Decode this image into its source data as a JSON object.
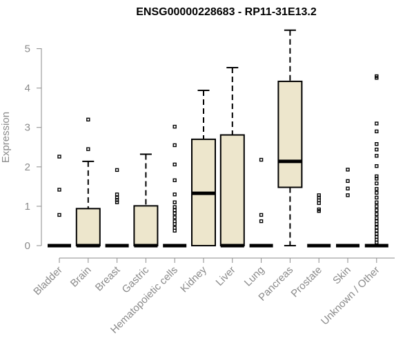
{
  "chart_data": {
    "type": "box",
    "title": "ENSG00000228683 - RP11-31E13.2",
    "xlabel": "",
    "ylabel": "Expression",
    "ylim": [
      0,
      5.5
    ],
    "yticks": [
      0,
      1,
      2,
      3,
      4,
      5
    ],
    "box_fill": "#ede6cc",
    "stroke_color": "#000000",
    "axis_color": "#8a8a8a",
    "categories": [
      "Bladder",
      "Brain",
      "Breast",
      "Gastric",
      "Hematopoietic cells",
      "Kidney",
      "Liver",
      "Lung",
      "Pancreas",
      "Prostate",
      "Skin",
      "Unknown / Other"
    ],
    "boxes": [
      {
        "category": "Bladder",
        "min": 0,
        "q1": 0,
        "median": 0,
        "q3": 0,
        "max": 0,
        "outliers": [
          0.78,
          1.42,
          2.26
        ]
      },
      {
        "category": "Brain",
        "min": 0,
        "q1": 0,
        "median": 0,
        "q3": 0.94,
        "max": 2.14,
        "outliers": [
          2.45,
          3.2
        ]
      },
      {
        "category": "Breast",
        "min": 0,
        "q1": 0,
        "median": 0,
        "q3": 0,
        "max": 0,
        "outliers": [
          1.1,
          1.16,
          1.22,
          1.3,
          1.92
        ]
      },
      {
        "category": "Gastric",
        "min": 0,
        "q1": 0,
        "median": 0,
        "q3": 1.01,
        "max": 2.32,
        "outliers": []
      },
      {
        "category": "Hematopoietic cells",
        "min": 0,
        "q1": 0,
        "median": 0,
        "q3": 0,
        "max": 0,
        "outliers": [
          0.38,
          0.45,
          0.55,
          0.62,
          0.72,
          0.82,
          0.9,
          0.98,
          1.1,
          1.3,
          1.66,
          2.06,
          2.55,
          3.02
        ]
      },
      {
        "category": "Kidney",
        "min": 0,
        "q1": 0,
        "median": 1.33,
        "q3": 2.7,
        "max": 3.94,
        "outliers": []
      },
      {
        "category": "Liver",
        "min": 0,
        "q1": 0,
        "median": 0,
        "q3": 2.81,
        "max": 4.52,
        "outliers": []
      },
      {
        "category": "Lung",
        "min": 0,
        "q1": 0,
        "median": 0,
        "q3": 0,
        "max": 0,
        "outliers": [
          0.62,
          0.78,
          2.18
        ]
      },
      {
        "category": "Pancreas",
        "min": 0,
        "q1": 1.48,
        "median": 2.14,
        "q3": 4.17,
        "max": 5.47,
        "outliers": []
      },
      {
        "category": "Prostate",
        "min": 0,
        "q1": 0,
        "median": 0,
        "q3": 0,
        "max": 0,
        "outliers": [
          0.88,
          0.92,
          1.08,
          1.15,
          1.22,
          1.28
        ]
      },
      {
        "category": "Skin",
        "min": 0,
        "q1": 0,
        "median": 0,
        "q3": 0,
        "max": 0,
        "outliers": [
          1.28,
          1.45,
          1.64,
          1.93
        ]
      },
      {
        "category": "Unknown / Other",
        "min": 0,
        "q1": 0,
        "median": 0,
        "q3": 0,
        "max": 0,
        "outliers": [
          0.08,
          0.15,
          0.22,
          0.3,
          0.38,
          0.46,
          0.55,
          0.62,
          0.7,
          0.8,
          0.9,
          1.0,
          1.1,
          1.22,
          1.34,
          1.44,
          1.58,
          1.7,
          1.76,
          2.02,
          2.28,
          2.44,
          2.58,
          2.9,
          3.1,
          4.26,
          4.3
        ]
      }
    ]
  }
}
